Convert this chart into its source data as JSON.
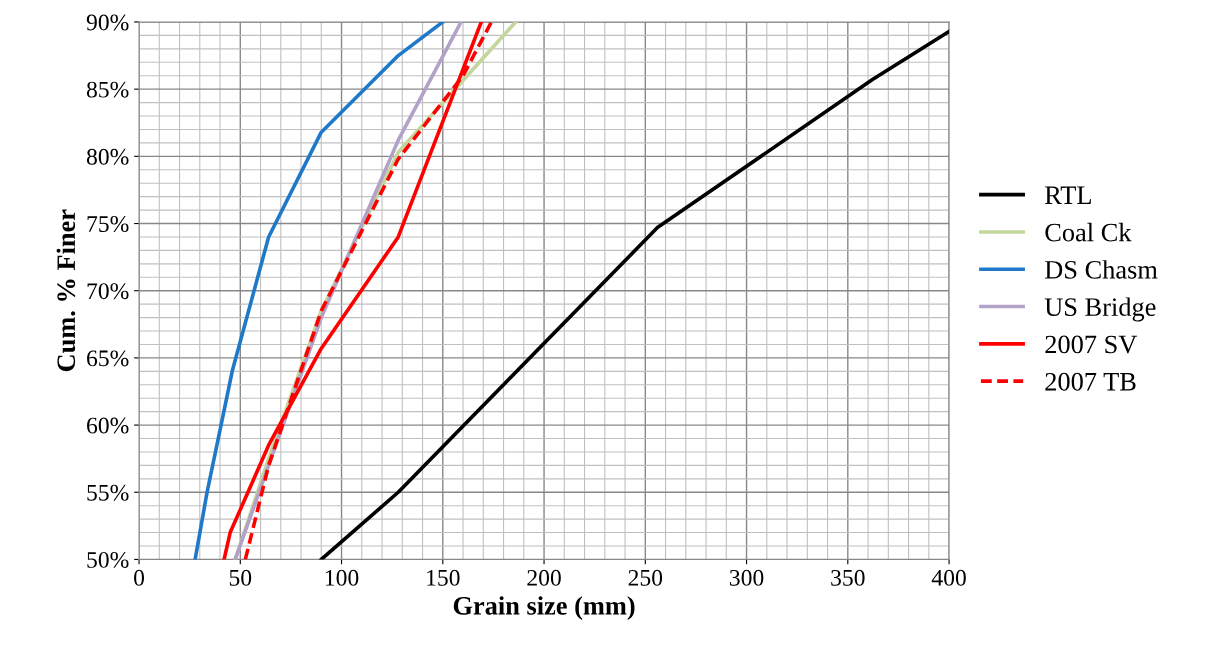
{
  "chart_data": {
    "type": "line",
    "xlabel": "Grain size (mm)",
    "ylabel": "Cum. % Finer",
    "xlim": [
      0,
      400
    ],
    "xticks": [
      0,
      50,
      100,
      150,
      200,
      250,
      300,
      350,
      400
    ],
    "ylim": [
      50,
      90
    ],
    "yticks": [
      {
        "value": 50,
        "label": "50%"
      },
      {
        "value": 55,
        "label": "55%"
      },
      {
        "value": 60,
        "label": "60%"
      },
      {
        "value": 65,
        "label": "65%"
      },
      {
        "value": 70,
        "label": "70%"
      },
      {
        "value": 75,
        "label": "75%"
      },
      {
        "value": 80,
        "label": "80%"
      },
      {
        "value": 85,
        "label": "85%"
      },
      {
        "value": 90,
        "label": "90%"
      }
    ],
    "grid": true,
    "legend": "right",
    "marker": "none",
    "series": [
      {
        "name": "RTL",
        "color": "#000000",
        "x": [
          90,
          128,
          256,
          362,
          400
        ],
        "values": [
          50,
          55,
          74.7,
          85.7,
          89.3
        ]
      },
      {
        "name": "Coal Ck",
        "color": "#c3d69b",
        "x": [
          47.5,
          64,
          90,
          128,
          186
        ],
        "values": [
          50,
          57.5,
          68.5,
          80.3,
          90
        ]
      },
      {
        "name": "DS Chasm",
        "color": "#1f78c8",
        "x": [
          27.7,
          33.6,
          40.5,
          46,
          64,
          90,
          128,
          150
        ],
        "values": [
          50,
          55,
          60,
          64,
          74,
          81.8,
          87.5,
          90
        ]
      },
      {
        "name": "US Bridge",
        "color": "#b3a2c7",
        "x": [
          47.5,
          64,
          90,
          128,
          159
        ],
        "values": [
          50,
          57,
          68,
          81.2,
          90
        ]
      },
      {
        "name": "2007 SV",
        "color": "#ff0000",
        "x": [
          42,
          45,
          64,
          90,
          128,
          169
        ],
        "values": [
          50,
          52,
          58.5,
          65.7,
          74,
          90
        ]
      },
      {
        "name": "2007 TB",
        "color": "#ff0000",
        "line_style": "dashed",
        "x": [
          52.5,
          64,
          90,
          128,
          160,
          174
        ],
        "values": [
          50,
          57,
          68.5,
          79.8,
          86,
          90
        ]
      }
    ]
  }
}
